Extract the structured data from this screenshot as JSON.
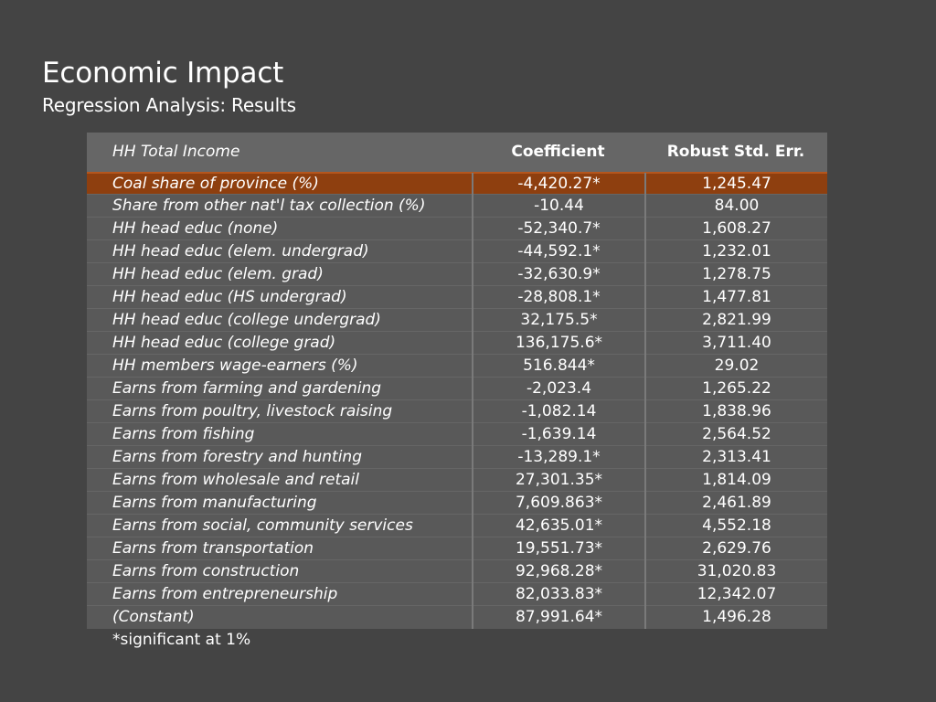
{
  "slide": {
    "title": "Economic Impact",
    "subtitle": "Regression Analysis: Results"
  },
  "table": {
    "headers": [
      "HH Total Income",
      "Coefficient",
      "Robust Std. Err."
    ],
    "rows": [
      [
        "Coal share of province (%)",
        "-4,420.27*",
        "1,245.47"
      ],
      [
        "Share from other nat'l tax collection (%)",
        "-10.44",
        "84.00"
      ],
      [
        "HH head educ (none)",
        "-52,340.7*",
        "1,608.27"
      ],
      [
        "HH head educ (elem. undergrad)",
        "-44,592.1*",
        "1,232.01"
      ],
      [
        "HH head educ (elem. grad)",
        "-32,630.9*",
        "1,278.75"
      ],
      [
        "HH head educ (HS undergrad)",
        "-28,808.1*",
        "1,477.81"
      ],
      [
        "HH head educ (college undergrad)",
        "32,175.5*",
        "2,821.99"
      ],
      [
        "HH head educ (college grad)",
        "136,175.6*",
        "3,711.40"
      ],
      [
        "HH members wage-earners (%)",
        "516.844*",
        "29.02"
      ],
      [
        "Earns from farming and gardening",
        "-2,023.4",
        "1,265.22"
      ],
      [
        "Earns from poultry, livestock raising",
        "-1,082.14",
        "1,838.96"
      ],
      [
        "Earns from fishing",
        "-1,639.14",
        "2,564.52"
      ],
      [
        "Earns from forestry and hunting",
        "-13,289.1*",
        "2,313.41"
      ],
      [
        "Earns from wholesale and retail",
        "27,301.35*",
        "1,814.09"
      ],
      [
        "Earns from manufacturing",
        "7,609.863*",
        "2,461.89"
      ],
      [
        "Earns from social, community services",
        "42,635.01*",
        "4,552.18"
      ],
      [
        "Earns from transportation",
        "19,551.73*",
        "2,629.76"
      ],
      [
        "Earns from construction",
        "92,968.28*",
        "31,020.83"
      ],
      [
        "Earns from entrepreneurship",
        "82,033.83*",
        "12,342.07"
      ],
      [
        "(Constant)",
        "87,991.64*",
        "1,496.28"
      ]
    ],
    "footnote": "*significant at 1%"
  },
  "colors": {
    "background": "#444444",
    "row": "#595959",
    "header": "#666666",
    "highlight": "#8e3f0f"
  }
}
